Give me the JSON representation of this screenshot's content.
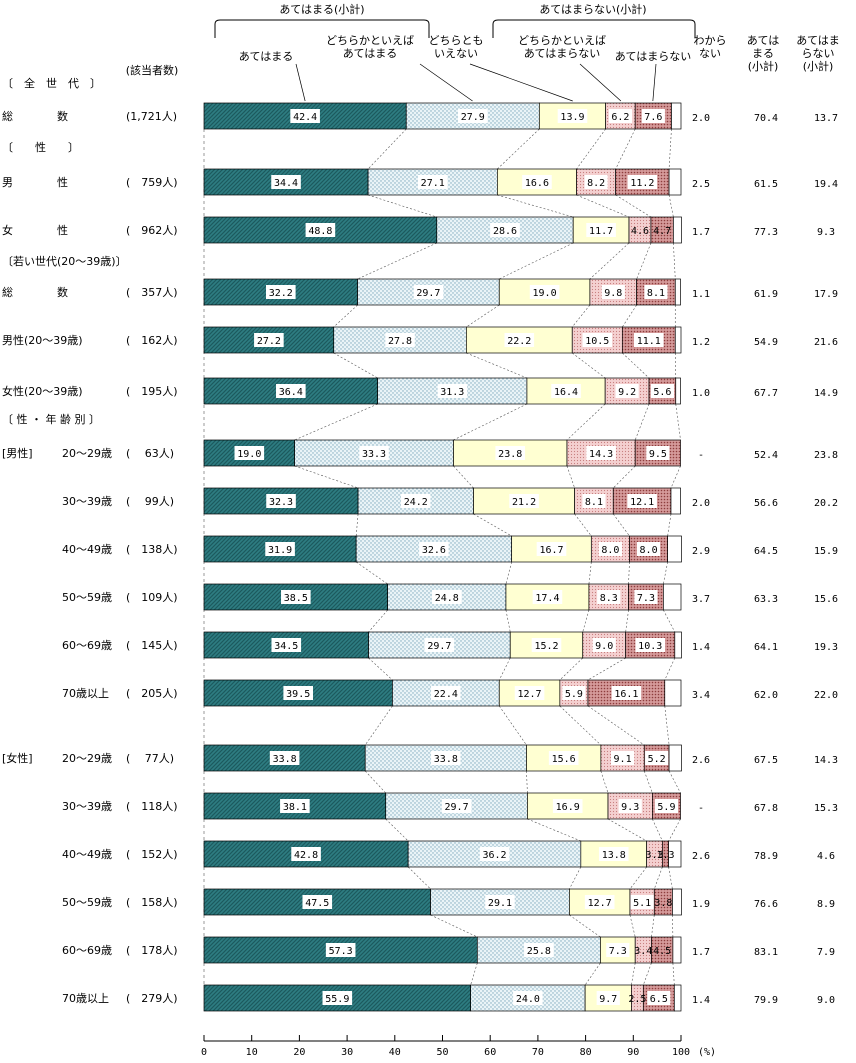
{
  "chart_data": {
    "type": "bar",
    "orientation": "horizontal",
    "stacked": true,
    "xlim": [
      0,
      100
    ],
    "x_unit": "(%)",
    "x_ticks": [
      0,
      10,
      20,
      30,
      40,
      50,
      60,
      70,
      80,
      90,
      100
    ],
    "header": {
      "group_yes": "あてはまる(小計)",
      "group_no": "あてはまらない(小計)",
      "count_header": "(該当者数)",
      "summary_headers": [
        [
          "あては",
          "まる",
          "(小計)"
        ],
        [
          "あてはま",
          "らない",
          "(小計)"
        ]
      ]
    },
    "series": [
      {
        "name": [
          "あてはまる"
        ],
        "color": "#2e7d82"
      },
      {
        "name": [
          "どちらかといえば",
          "あてはまる"
        ],
        "color": "#e6f2f6"
      },
      {
        "name": [
          "どちらとも",
          "いえない"
        ],
        "color": "#ffffd2"
      },
      {
        "name": [
          "どちらかといえば",
          "あてはまらない"
        ],
        "color": "#f2c8c8"
      },
      {
        "name": [
          "あてはまらない"
        ],
        "color": "#c98a8a"
      },
      {
        "name": [
          "わから",
          "ない"
        ],
        "color": "#ffffff"
      }
    ],
    "sections": [
      {
        "label": "〔　全　世　代　〕"
      },
      {
        "label": "〔　　性　　〕"
      },
      {
        "label": "〔若い世代(20～39歳)〕"
      },
      {
        "label": "〔 性 ・ 年 齢 別 〕"
      }
    ],
    "groups": [
      "[男性]",
      "[女性]"
    ],
    "rows": [
      {
        "label": "総　　　　数",
        "n": "(1,721人)",
        "values": [
          42.4,
          27.9,
          13.9,
          6.2,
          7.6,
          2.0
        ],
        "yes": "70.4",
        "no": "13.7"
      },
      {
        "label": "男　　　　性",
        "n": "(　759人)",
        "values": [
          34.4,
          27.1,
          16.6,
          8.2,
          11.2,
          2.5
        ],
        "yes": "61.5",
        "no": "19.4"
      },
      {
        "label": "女　　　　性",
        "n": "(　962人)",
        "values": [
          48.8,
          28.6,
          11.7,
          4.6,
          4.7,
          1.7
        ],
        "yes": "77.3",
        "no": "9.3"
      },
      {
        "label": "総　　　　数",
        "n": "(　357人)",
        "values": [
          32.2,
          29.7,
          19.0,
          9.8,
          8.1,
          1.1
        ],
        "yes": "61.9",
        "no": "17.9"
      },
      {
        "label": "男性(20～39歳)",
        "n": "(　162人)",
        "values": [
          27.2,
          27.8,
          22.2,
          10.5,
          11.1,
          1.2
        ],
        "yes": "54.9",
        "no": "21.6"
      },
      {
        "label": "女性(20～39歳)",
        "n": "(　195人)",
        "values": [
          36.4,
          31.3,
          16.4,
          9.2,
          5.6,
          1.0
        ],
        "yes": "67.7",
        "no": "14.9"
      },
      {
        "label": "20～29歳",
        "n": "(　 63人)",
        "values": [
          19.0,
          33.3,
          23.8,
          14.3,
          9.5,
          0
        ],
        "dk": "-",
        "yes": "52.4",
        "no": "23.8"
      },
      {
        "label": "30～39歳",
        "n": "(　 99人)",
        "values": [
          32.3,
          24.2,
          21.2,
          8.1,
          12.1,
          2.0
        ],
        "yes": "56.6",
        "no": "20.2"
      },
      {
        "label": "40～49歳",
        "n": "(　138人)",
        "values": [
          31.9,
          32.6,
          16.7,
          8.0,
          8.0,
          2.9
        ],
        "yes": "64.5",
        "no": "15.9"
      },
      {
        "label": "50～59歳",
        "n": "(　109人)",
        "values": [
          38.5,
          24.8,
          17.4,
          8.3,
          7.3,
          3.7
        ],
        "yes": "63.3",
        "no": "15.6"
      },
      {
        "label": "60～69歳",
        "n": "(　145人)",
        "values": [
          34.5,
          29.7,
          15.2,
          9.0,
          10.3,
          1.4
        ],
        "yes": "64.1",
        "no": "19.3"
      },
      {
        "label": "70歳以上",
        "n": "(　205人)",
        "values": [
          39.5,
          22.4,
          12.7,
          5.9,
          16.1,
          3.4
        ],
        "yes": "62.0",
        "no": "22.0"
      },
      {
        "label": "20～29歳",
        "n": "(　 77人)",
        "values": [
          33.8,
          33.8,
          15.6,
          9.1,
          5.2,
          2.6
        ],
        "yes": "67.5",
        "no": "14.3"
      },
      {
        "label": "30～39歳",
        "n": "(　118人)",
        "values": [
          38.1,
          29.7,
          16.9,
          9.3,
          5.9,
          0
        ],
        "dk": "-",
        "yes": "67.8",
        "no": "15.3"
      },
      {
        "label": "40～49歳",
        "n": "(　152人)",
        "values": [
          42.8,
          36.2,
          13.8,
          3.3,
          1.3,
          2.6
        ],
        "yes": "78.9",
        "no": "4.6"
      },
      {
        "label": "50～59歳",
        "n": "(　158人)",
        "values": [
          47.5,
          29.1,
          12.7,
          5.1,
          3.8,
          1.9
        ],
        "yes": "76.6",
        "no": "8.9"
      },
      {
        "label": "60～69歳",
        "n": "(　178人)",
        "values": [
          57.3,
          25.8,
          7.3,
          3.4,
          4.5,
          1.7
        ],
        "yes": "83.1",
        "no": "7.9"
      },
      {
        "label": "70歳以上",
        "n": "(　279人)",
        "values": [
          55.9,
          24.0,
          9.7,
          2.5,
          6.5,
          1.4
        ],
        "yes": "79.9",
        "no": "9.0"
      }
    ]
  }
}
